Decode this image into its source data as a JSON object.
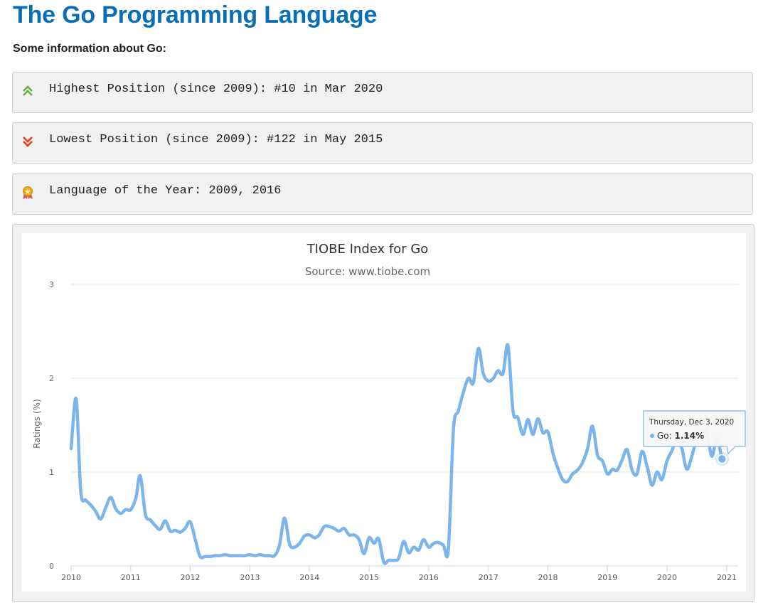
{
  "page": {
    "title": "The Go Programming Language",
    "intro": "Some information about Go:"
  },
  "info": {
    "highest": {
      "icon": "double-chevron-up-icon",
      "color": "#6ab04c",
      "text": "Highest Position (since 2009): #10 in Mar 2020"
    },
    "lowest": {
      "icon": "double-chevron-down-icon",
      "color": "#e8401c",
      "text": "Lowest Position (since 2009): #122 in May 2015"
    },
    "language_of_year": {
      "icon": "award-medal-icon",
      "text": "Language of the Year: 2009, 2016"
    }
  },
  "chart_data": {
    "type": "line",
    "title": "TIOBE Index for Go",
    "subtitle": "Source: www.tiobe.com",
    "ylabel": "Ratings (%)",
    "xlabel": "",
    "ylim": [
      0,
      3
    ],
    "yticks": [
      "0",
      "1",
      "2",
      "3"
    ],
    "xticks": [
      "2010",
      "2011",
      "2012",
      "2013",
      "2014",
      "2015",
      "2016",
      "2017",
      "2018",
      "2019",
      "2020",
      "2021"
    ],
    "grid": true,
    "legend": "none",
    "series": [
      {
        "name": "Go",
        "color": "#7cb5ec",
        "points": [
          [
            "2010-01-01",
            1.25
          ],
          [
            "2010-02-01",
            1.78
          ],
          [
            "2010-03-01",
            0.8
          ],
          [
            "2010-04-01",
            0.7
          ],
          [
            "2010-05-01",
            0.65
          ],
          [
            "2010-06-01",
            0.58
          ],
          [
            "2010-07-01",
            0.5
          ],
          [
            "2010-08-01",
            0.62
          ],
          [
            "2010-09-01",
            0.73
          ],
          [
            "2010-10-01",
            0.61
          ],
          [
            "2010-11-01",
            0.56
          ],
          [
            "2010-12-01",
            0.6
          ],
          [
            "2011-01-01",
            0.6
          ],
          [
            "2011-02-01",
            0.72
          ],
          [
            "2011-03-01",
            0.96
          ],
          [
            "2011-04-01",
            0.55
          ],
          [
            "2011-05-01",
            0.49
          ],
          [
            "2011-06-01",
            0.43
          ],
          [
            "2011-07-01",
            0.39
          ],
          [
            "2011-08-01",
            0.48
          ],
          [
            "2011-09-01",
            0.37
          ],
          [
            "2011-10-01",
            0.38
          ],
          [
            "2011-11-01",
            0.36
          ],
          [
            "2011-12-01",
            0.4
          ],
          [
            "2012-01-01",
            0.47
          ],
          [
            "2012-02-01",
            0.28
          ],
          [
            "2012-03-01",
            0.1
          ],
          [
            "2012-04-01",
            0.1
          ],
          [
            "2012-05-01",
            0.1
          ],
          [
            "2012-06-01",
            0.11
          ],
          [
            "2012-07-01",
            0.11
          ],
          [
            "2012-08-01",
            0.12
          ],
          [
            "2012-09-01",
            0.11
          ],
          [
            "2012-10-01",
            0.11
          ],
          [
            "2012-11-01",
            0.11
          ],
          [
            "2012-12-01",
            0.11
          ],
          [
            "2013-01-01",
            0.12
          ],
          [
            "2013-02-01",
            0.11
          ],
          [
            "2013-03-01",
            0.12
          ],
          [
            "2013-04-01",
            0.11
          ],
          [
            "2013-05-01",
            0.11
          ],
          [
            "2013-06-01",
            0.11
          ],
          [
            "2013-07-01",
            0.22
          ],
          [
            "2013-08-01",
            0.51
          ],
          [
            "2013-09-01",
            0.23
          ],
          [
            "2013-10-01",
            0.2
          ],
          [
            "2013-11-01",
            0.24
          ],
          [
            "2013-12-01",
            0.32
          ],
          [
            "2014-01-01",
            0.33
          ],
          [
            "2014-02-01",
            0.3
          ],
          [
            "2014-03-01",
            0.33
          ],
          [
            "2014-04-01",
            0.42
          ],
          [
            "2014-05-01",
            0.42
          ],
          [
            "2014-06-01",
            0.4
          ],
          [
            "2014-07-01",
            0.37
          ],
          [
            "2014-08-01",
            0.4
          ],
          [
            "2014-09-01",
            0.33
          ],
          [
            "2014-10-01",
            0.33
          ],
          [
            "2014-11-01",
            0.28
          ],
          [
            "2014-12-01",
            0.13
          ],
          [
            "2015-01-01",
            0.3
          ],
          [
            "2015-02-01",
            0.24
          ],
          [
            "2015-03-01",
            0.29
          ],
          [
            "2015-04-01",
            0.04
          ],
          [
            "2015-05-01",
            0.06
          ],
          [
            "2015-06-01",
            0.06
          ],
          [
            "2015-07-01",
            0.08
          ],
          [
            "2015-08-01",
            0.26
          ],
          [
            "2015-09-01",
            0.14
          ],
          [
            "2015-10-01",
            0.2
          ],
          [
            "2015-11-01",
            0.17
          ],
          [
            "2015-12-01",
            0.28
          ],
          [
            "2016-01-01",
            0.2
          ],
          [
            "2016-02-01",
            0.24
          ],
          [
            "2016-03-01",
            0.25
          ],
          [
            "2016-04-01",
            0.22
          ],
          [
            "2016-05-01",
            0.18
          ],
          [
            "2016-06-01",
            1.45
          ],
          [
            "2016-07-01",
            1.65
          ],
          [
            "2016-08-01",
            1.85
          ],
          [
            "2016-09-01",
            2.0
          ],
          [
            "2016-10-01",
            1.95
          ],
          [
            "2016-11-01",
            2.32
          ],
          [
            "2016-12-01",
            2.05
          ],
          [
            "2017-01-01",
            1.97
          ],
          [
            "2017-02-01",
            2.0
          ],
          [
            "2017-03-01",
            2.08
          ],
          [
            "2017-04-01",
            2.05
          ],
          [
            "2017-05-01",
            2.35
          ],
          [
            "2017-06-01",
            1.65
          ],
          [
            "2017-07-01",
            1.58
          ],
          [
            "2017-08-01",
            1.4
          ],
          [
            "2017-09-01",
            1.56
          ],
          [
            "2017-10-01",
            1.4
          ],
          [
            "2017-11-01",
            1.57
          ],
          [
            "2017-12-01",
            1.42
          ],
          [
            "2018-01-01",
            1.43
          ],
          [
            "2018-02-01",
            1.2
          ],
          [
            "2018-03-01",
            1.05
          ],
          [
            "2018-04-01",
            0.92
          ],
          [
            "2018-05-01",
            0.9
          ],
          [
            "2018-06-01",
            0.98
          ],
          [
            "2018-07-01",
            1.02
          ],
          [
            "2018-08-01",
            1.1
          ],
          [
            "2018-09-01",
            1.25
          ],
          [
            "2018-10-01",
            1.49
          ],
          [
            "2018-11-01",
            1.18
          ],
          [
            "2018-12-01",
            1.12
          ],
          [
            "2019-01-01",
            0.98
          ],
          [
            "2019-02-01",
            1.03
          ],
          [
            "2019-03-01",
            1.02
          ],
          [
            "2019-04-01",
            1.13
          ],
          [
            "2019-05-01",
            1.24
          ],
          [
            "2019-06-01",
            1.02
          ],
          [
            "2019-07-01",
            0.98
          ],
          [
            "2019-08-01",
            1.22
          ],
          [
            "2019-09-01",
            1.06
          ],
          [
            "2019-10-01",
            0.86
          ],
          [
            "2019-11-01",
            1.0
          ],
          [
            "2019-12-01",
            0.92
          ],
          [
            "2020-01-01",
            1.12
          ],
          [
            "2020-02-01",
            1.23
          ],
          [
            "2020-03-01",
            1.36
          ],
          [
            "2020-04-01",
            1.25
          ],
          [
            "2020-05-01",
            1.03
          ],
          [
            "2020-06-01",
            1.17
          ],
          [
            "2020-07-01",
            1.35
          ],
          [
            "2020-08-01",
            1.44
          ],
          [
            "2020-09-01",
            1.42
          ],
          [
            "2020-10-01",
            1.17
          ],
          [
            "2020-11-01",
            1.35
          ],
          [
            "2020-12-03",
            1.14
          ]
        ]
      }
    ],
    "tooltip": {
      "date": "Thursday, Dec 3, 2020",
      "series": "Go",
      "value": "1.14%"
    }
  }
}
